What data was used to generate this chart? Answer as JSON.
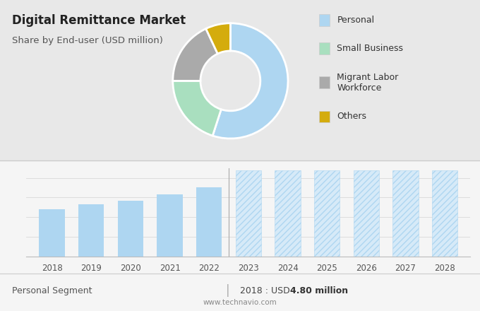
{
  "title": "Digital Remittance Market",
  "subtitle": "Share by End-user (USD million)",
  "donut_labels": [
    "Personal",
    "Small Business",
    "Migrant Labor\nWorkforce",
    "Others"
  ],
  "donut_sizes": [
    55,
    20,
    18,
    7
  ],
  "donut_colors": [
    "#aed6f1",
    "#a9dfbf",
    "#aaaaaa",
    "#d4ac0d"
  ],
  "bar_years_solid": [
    2018,
    2019,
    2020,
    2021,
    2022
  ],
  "bar_values_solid": [
    4.8,
    5.3,
    5.7,
    6.3,
    7.0
  ],
  "bar_years_forecast": [
    2023,
    2024,
    2025,
    2026,
    2027,
    2028
  ],
  "bar_color_solid": "#aed6f1",
  "bar_color_forecast_fill": "#d6eaf8",
  "bar_color_forecast_edge": "#aed6f1",
  "hatch_pattern": "////",
  "footer_left": "Personal Segment",
  "footer_divider": "|",
  "footer_right_plain": "2018 : USD ",
  "footer_right_bold": "4.80 million",
  "footer_url": "www.technavio.com",
  "bg_top": "#e8e8e8",
  "bg_bottom": "#f5f5f5",
  "title_fontsize": 12,
  "subtitle_fontsize": 9.5,
  "legend_fontsize": 9,
  "ylim": [
    0,
    9
  ]
}
